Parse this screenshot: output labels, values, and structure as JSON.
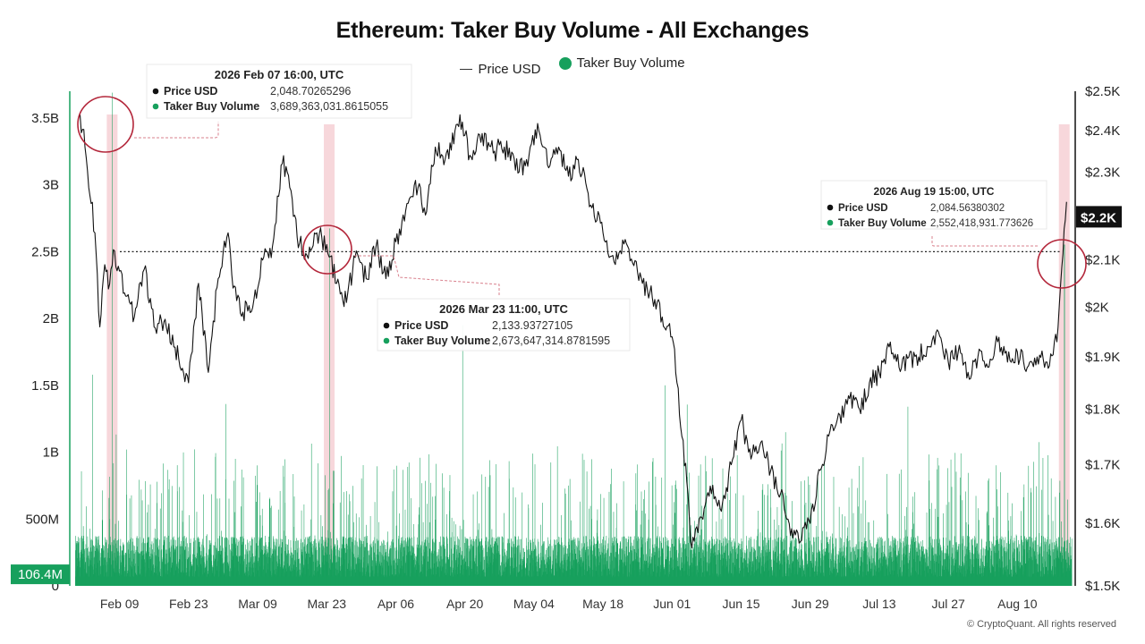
{
  "chart_data": {
    "type": "bar",
    "title": "Ethereum: Taker Buy Volume - All Exchanges",
    "legend": {
      "placement": "top-center",
      "items": [
        "Price USD",
        "Taker Buy Volume"
      ]
    },
    "series": [
      {
        "name": "Taker Buy Volume",
        "type": "bar",
        "axis": "left",
        "color": "#17a05d",
        "hourly_points": 4700,
        "typical_level": [
          150000000,
          450000000
        ],
        "peaks": [
          {
            "date": "2026-02-07",
            "value": 3689363031.86
          },
          {
            "date": "2026-02-03",
            "value": 1580000000
          },
          {
            "date": "2026-03-23",
            "value": 2673647314.88
          },
          {
            "date": "2026-04-19",
            "value": 1950000000
          },
          {
            "date": "2026-03-02",
            "value": 1360000000
          },
          {
            "date": "2026-05-30",
            "value": 1500000000
          },
          {
            "date": "2026-08-19",
            "value": 2552418931.77
          }
        ]
      },
      {
        "name": "Price USD",
        "type": "line",
        "axis": "right",
        "color": "#111111",
        "points": [
          [
            "2026-02-01",
            2440
          ],
          [
            "2026-02-02",
            2360
          ],
          [
            "2026-02-04",
            2160
          ],
          [
            "2026-02-05",
            1960
          ],
          [
            "2026-02-06",
            2090
          ],
          [
            "2026-02-07",
            2048.7
          ],
          [
            "2026-02-08",
            2120
          ],
          [
            "2026-02-10",
            2030
          ],
          [
            "2026-02-12",
            1980
          ],
          [
            "2026-02-14",
            2080
          ],
          [
            "2026-02-16",
            1960
          ],
          [
            "2026-02-18",
            1970
          ],
          [
            "2026-02-20",
            1920
          ],
          [
            "2026-02-23",
            1850
          ],
          [
            "2026-02-25",
            2050
          ],
          [
            "2026-02-27",
            1870
          ],
          [
            "2026-03-01",
            2060
          ],
          [
            "2026-03-03",
            2160
          ],
          [
            "2026-03-04",
            2040
          ],
          [
            "2026-03-06",
            1990
          ],
          [
            "2026-03-08",
            2000
          ],
          [
            "2026-03-10",
            2100
          ],
          [
            "2026-03-12",
            2130
          ],
          [
            "2026-03-14",
            2320
          ],
          [
            "2026-03-15",
            2300
          ],
          [
            "2026-03-17",
            2150
          ],
          [
            "2026-03-19",
            2110
          ],
          [
            "2026-03-21",
            2160
          ],
          [
            "2026-03-23",
            2133.9
          ],
          [
            "2026-03-25",
            2050
          ],
          [
            "2026-03-27",
            2010
          ],
          [
            "2026-03-29",
            2120
          ],
          [
            "2026-03-31",
            2060
          ],
          [
            "2026-04-02",
            2130
          ],
          [
            "2026-04-04",
            2060
          ],
          [
            "2026-04-06",
            2140
          ],
          [
            "2026-04-08",
            2210
          ],
          [
            "2026-04-10",
            2280
          ],
          [
            "2026-04-12",
            2200
          ],
          [
            "2026-04-14",
            2360
          ],
          [
            "2026-04-16",
            2330
          ],
          [
            "2026-04-18",
            2400
          ],
          [
            "2026-04-19",
            2440
          ],
          [
            "2026-04-21",
            2340
          ],
          [
            "2026-04-23",
            2390
          ],
          [
            "2026-04-26",
            2350
          ],
          [
            "2026-04-28",
            2360
          ],
          [
            "2026-05-01",
            2300
          ],
          [
            "2026-05-03",
            2340
          ],
          [
            "2026-05-05",
            2400
          ],
          [
            "2026-05-07",
            2310
          ],
          [
            "2026-05-09",
            2360
          ],
          [
            "2026-05-11",
            2290
          ],
          [
            "2026-05-13",
            2330
          ],
          [
            "2026-05-15",
            2250
          ],
          [
            "2026-05-18",
            2160
          ],
          [
            "2026-05-20",
            2110
          ],
          [
            "2026-05-23",
            2130
          ],
          [
            "2026-05-26",
            2050
          ],
          [
            "2026-05-28",
            2020
          ],
          [
            "2026-05-30",
            1980
          ],
          [
            "2026-06-01",
            1940
          ],
          [
            "2026-06-02",
            1850
          ],
          [
            "2026-06-03",
            1750
          ],
          [
            "2026-06-04",
            1670
          ],
          [
            "2026-06-05",
            1560
          ],
          [
            "2026-06-07",
            1610
          ],
          [
            "2026-06-09",
            1650
          ],
          [
            "2026-06-11",
            1620
          ],
          [
            "2026-06-13",
            1700
          ],
          [
            "2026-06-15",
            1780
          ],
          [
            "2026-06-17",
            1710
          ],
          [
            "2026-06-19",
            1740
          ],
          [
            "2026-06-21",
            1690
          ],
          [
            "2026-06-23",
            1650
          ],
          [
            "2026-06-25",
            1580
          ],
          [
            "2026-06-27",
            1570
          ],
          [
            "2026-06-29",
            1600
          ],
          [
            "2026-07-01",
            1690
          ],
          [
            "2026-07-03",
            1760
          ],
          [
            "2026-07-05",
            1790
          ],
          [
            "2026-07-07",
            1820
          ],
          [
            "2026-07-09",
            1800
          ],
          [
            "2026-07-11",
            1850
          ],
          [
            "2026-07-13",
            1870
          ],
          [
            "2026-07-15",
            1920
          ],
          [
            "2026-07-17",
            1880
          ],
          [
            "2026-07-19",
            1900
          ],
          [
            "2026-07-21",
            1900
          ],
          [
            "2026-07-23",
            1920
          ],
          [
            "2026-07-25",
            1950
          ],
          [
            "2026-07-27",
            1890
          ],
          [
            "2026-07-29",
            1910
          ],
          [
            "2026-07-31",
            1870
          ],
          [
            "2026-08-02",
            1900
          ],
          [
            "2026-08-04",
            1880
          ],
          [
            "2026-08-06",
            1930
          ],
          [
            "2026-08-08",
            1890
          ],
          [
            "2026-08-10",
            1910
          ],
          [
            "2026-08-12",
            1880
          ],
          [
            "2026-08-14",
            1900
          ],
          [
            "2026-08-16",
            1890
          ],
          [
            "2026-08-18",
            1930
          ],
          [
            "2026-08-19",
            2084.56
          ],
          [
            "2026-08-19 23:00",
            2230
          ]
        ]
      }
    ],
    "x_axis": {
      "type": "date",
      "range": [
        "2026-01-31",
        "2026-08-21"
      ],
      "ticks": [
        {
          "date": "2026-02-09",
          "label": "Feb 09"
        },
        {
          "date": "2026-02-23",
          "label": "Feb 23"
        },
        {
          "date": "2026-03-09",
          "label": "Mar 09"
        },
        {
          "date": "2026-03-23",
          "label": "Mar 23"
        },
        {
          "date": "2026-04-06",
          "label": "Apr 06"
        },
        {
          "date": "2026-04-20",
          "label": "Apr 20"
        },
        {
          "date": "2026-05-04",
          "label": "May 04"
        },
        {
          "date": "2026-05-18",
          "label": "May 18"
        },
        {
          "date": "2026-06-01",
          "label": "Jun 01"
        },
        {
          "date": "2026-06-15",
          "label": "Jun 15"
        },
        {
          "date": "2026-06-29",
          "label": "Jun 29"
        },
        {
          "date": "2026-07-13",
          "label": "Jul 13"
        },
        {
          "date": "2026-07-27",
          "label": "Jul 27"
        },
        {
          "date": "2026-08-10",
          "label": "Aug 10"
        }
      ]
    },
    "y_left": {
      "range": [
        0,
        3700000000
      ],
      "ticks": [
        {
          "value": 0,
          "label": "0"
        },
        {
          "value": 500000000,
          "label": "500M"
        },
        {
          "value": 1000000000,
          "label": "1B"
        },
        {
          "value": 1500000000,
          "label": "1.5B"
        },
        {
          "value": 2000000000,
          "label": "2B"
        },
        {
          "value": 2500000000,
          "label": "2.5B"
        },
        {
          "value": 3000000000,
          "label": "3B"
        },
        {
          "value": 3500000000,
          "label": "3.5B"
        }
      ],
      "current_badge": {
        "value": 106400000,
        "label": "106.4M"
      }
    },
    "y_right": {
      "scale": "log",
      "range": [
        1500,
        2500
      ],
      "ticks": [
        {
          "value": 1500,
          "label": "$1.5K"
        },
        {
          "value": 1600,
          "label": "$1.6K"
        },
        {
          "value": 1700,
          "label": "$1.7K"
        },
        {
          "value": 1800,
          "label": "$1.8K"
        },
        {
          "value": 1900,
          "label": "$1.9K"
        },
        {
          "value": 2000,
          "label": "$2K"
        },
        {
          "value": 2100,
          "label": "$2.1K"
        },
        {
          "value": 2200,
          "label": "$2.2K"
        },
        {
          "value": 2300,
          "label": "$2.3K"
        },
        {
          "value": 2400,
          "label": "$2.4K"
        },
        {
          "value": 2500,
          "label": "$2.5K"
        }
      ],
      "current_badge": {
        "value": 2200,
        "label": "$2.2K"
      }
    },
    "reference_line": {
      "value": 2500000000,
      "style": "dotted"
    },
    "highlight_bands": [
      "2026-02-07",
      "2026-03-23",
      "2026-08-19"
    ],
    "tooltips": [
      {
        "date": "2026-02-07",
        "heading": "2026 Feb 07 16:00, UTC",
        "rows": [
          {
            "label": "Price USD",
            "value": "2,048.70265296",
            "color": "#111111"
          },
          {
            "label": "Taker Buy Volume",
            "value": "3,689,363,031.8615055",
            "color": "#17a05d"
          }
        ]
      },
      {
        "date": "2026-03-23",
        "heading": "2026 Mar 23 11:00, UTC",
        "rows": [
          {
            "label": "Price USD",
            "value": "2,133.93727105",
            "color": "#111111"
          },
          {
            "label": "Taker Buy Volume",
            "value": "2,673,647,314.8781595",
            "color": "#17a05d"
          }
        ]
      },
      {
        "date": "2026-08-19",
        "heading": "2026 Aug 19 15:00, UTC",
        "rows": [
          {
            "label": "Price USD",
            "value": "2,084.56380302",
            "color": "#111111"
          },
          {
            "label": "Taker Buy Volume",
            "value": "2,552,418,931.773626",
            "color": "#17a05d"
          }
        ]
      }
    ],
    "grid": false
  },
  "copyright": "© CryptoQuant. All rights reserved"
}
